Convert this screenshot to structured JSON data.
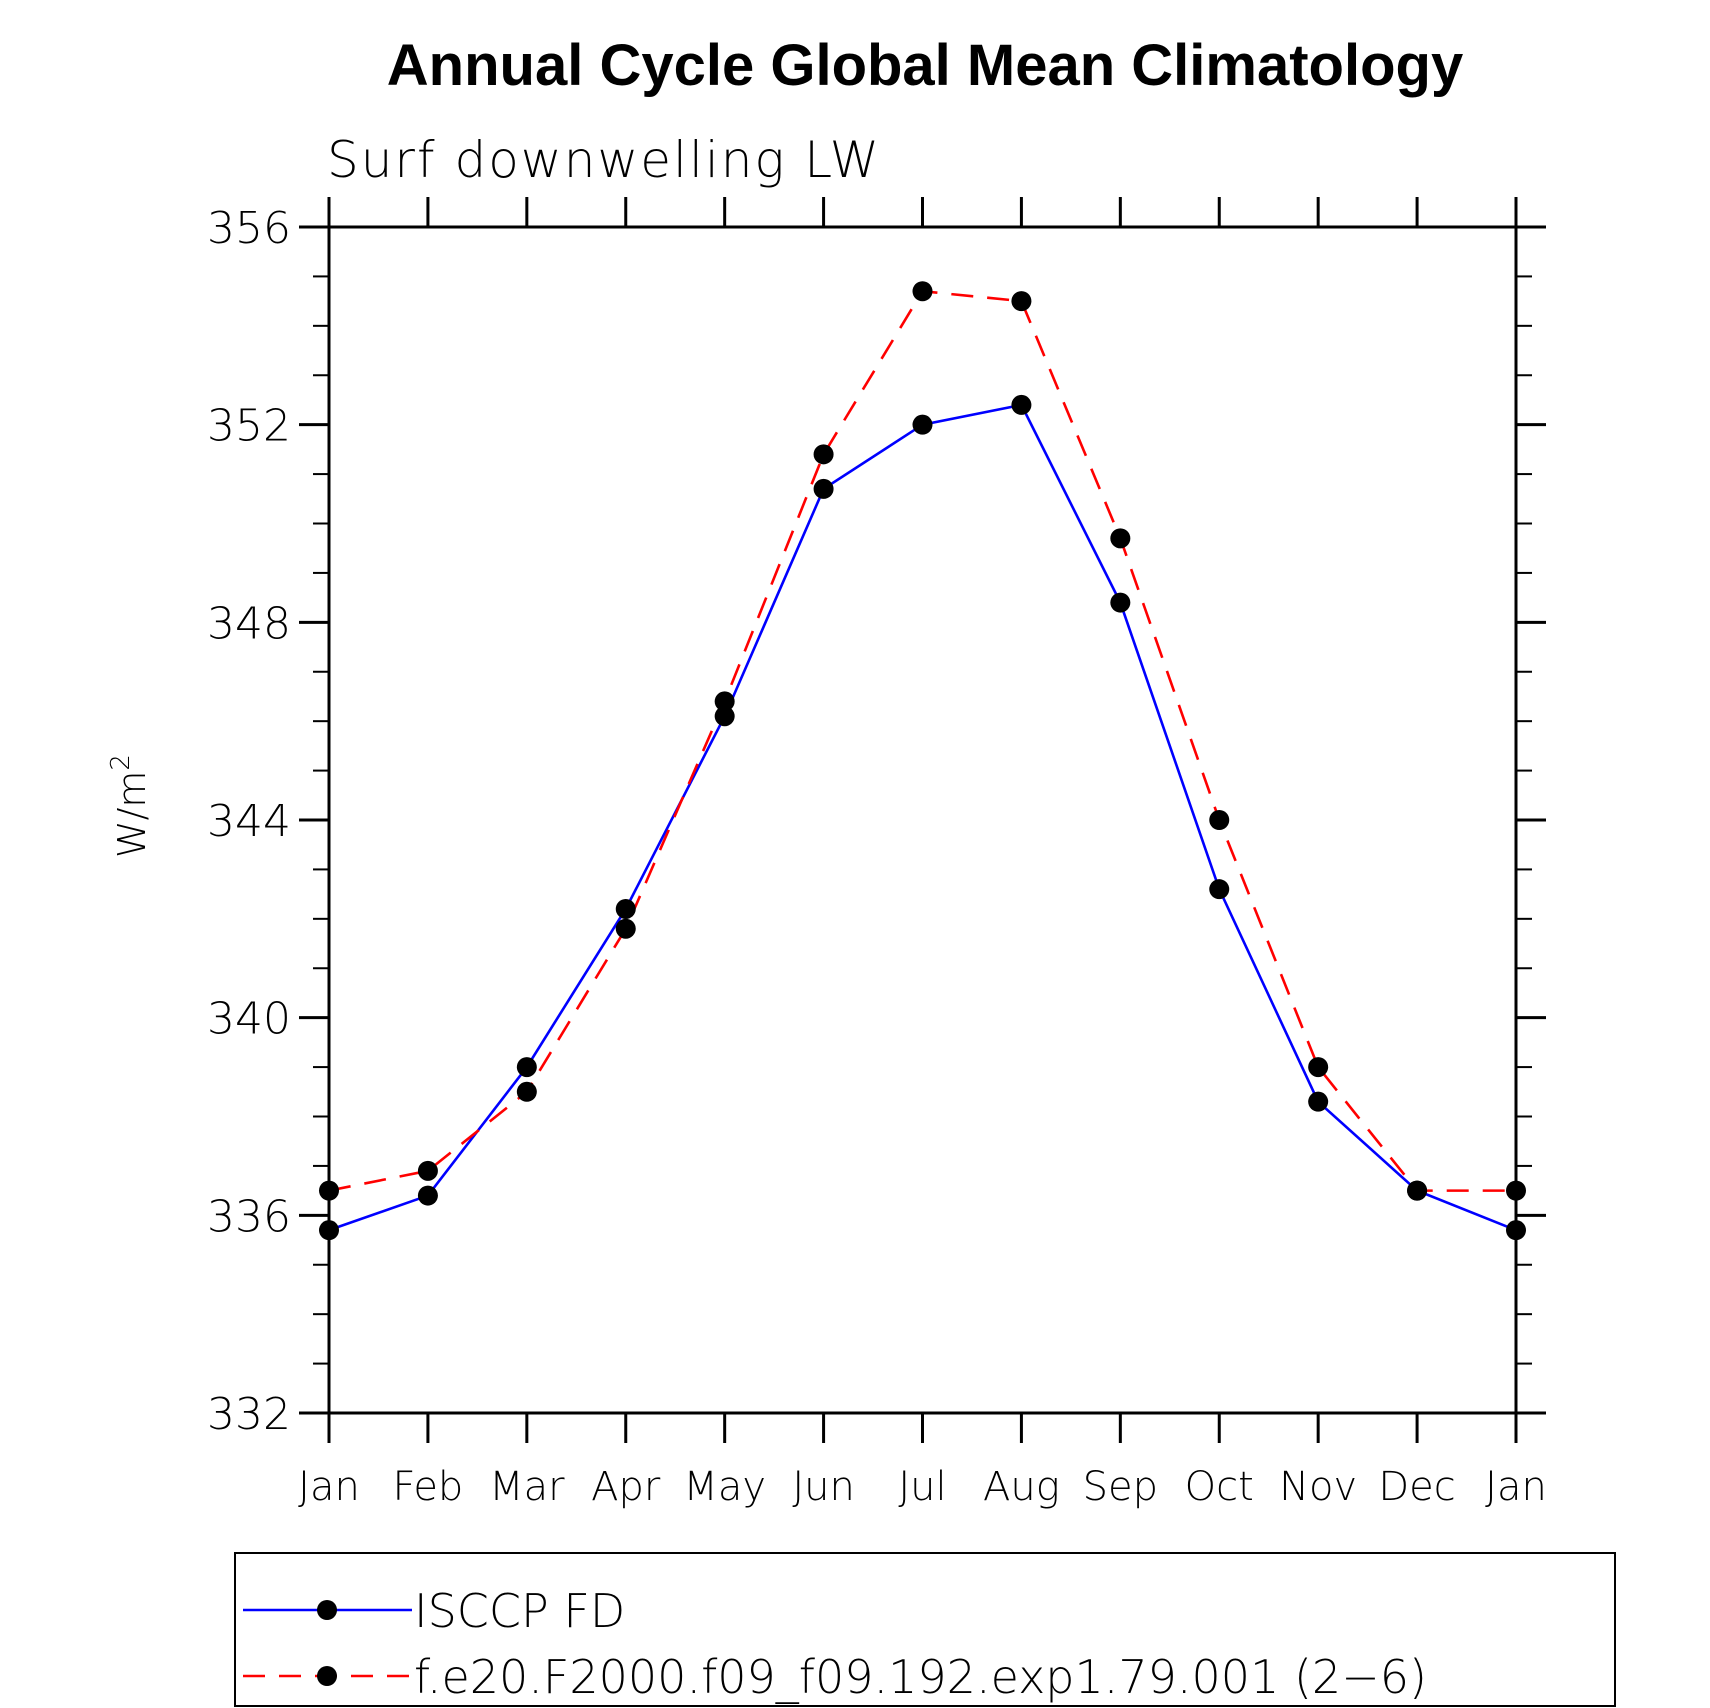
{
  "chart_data": {
    "type": "line",
    "title": "Annual Cycle Global Mean Climatology",
    "subtitle": "Surf downwelling LW",
    "ylabel": "W/m",
    "ylabel_superscript": "2",
    "ylim": [
      332,
      356
    ],
    "yticks": [
      "356",
      "352",
      "348",
      "344",
      "340",
      "336",
      "332"
    ],
    "ytick_values": [
      356,
      352,
      348,
      344,
      340,
      336,
      332
    ],
    "categories": [
      "Jan",
      "Feb",
      "Mar",
      "Apr",
      "May",
      "Jun",
      "Jul",
      "Aug",
      "Sep",
      "Oct",
      "Nov",
      "Dec",
      "Jan"
    ],
    "series": [
      {
        "name": "ISCCP FD",
        "color": "#0000ff",
        "dash": "solid",
        "marker": "filled-circle",
        "values": [
          335.7,
          336.4,
          339.0,
          342.2,
          346.1,
          350.7,
          352.0,
          352.4,
          348.4,
          342.6,
          338.3,
          336.5,
          335.7
        ]
      },
      {
        "name": "f.e20.F2000.f09_f09.192.exp1.79.001 (2−6)",
        "color": "#ff0000",
        "dash": "dashed",
        "marker": "filled-circle",
        "values": [
          336.5,
          336.9,
          338.5,
          341.8,
          346.4,
          351.4,
          354.7,
          354.5,
          349.7,
          344.0,
          339.0,
          336.5,
          336.5
        ]
      }
    ],
    "legend_position": "bottom"
  }
}
